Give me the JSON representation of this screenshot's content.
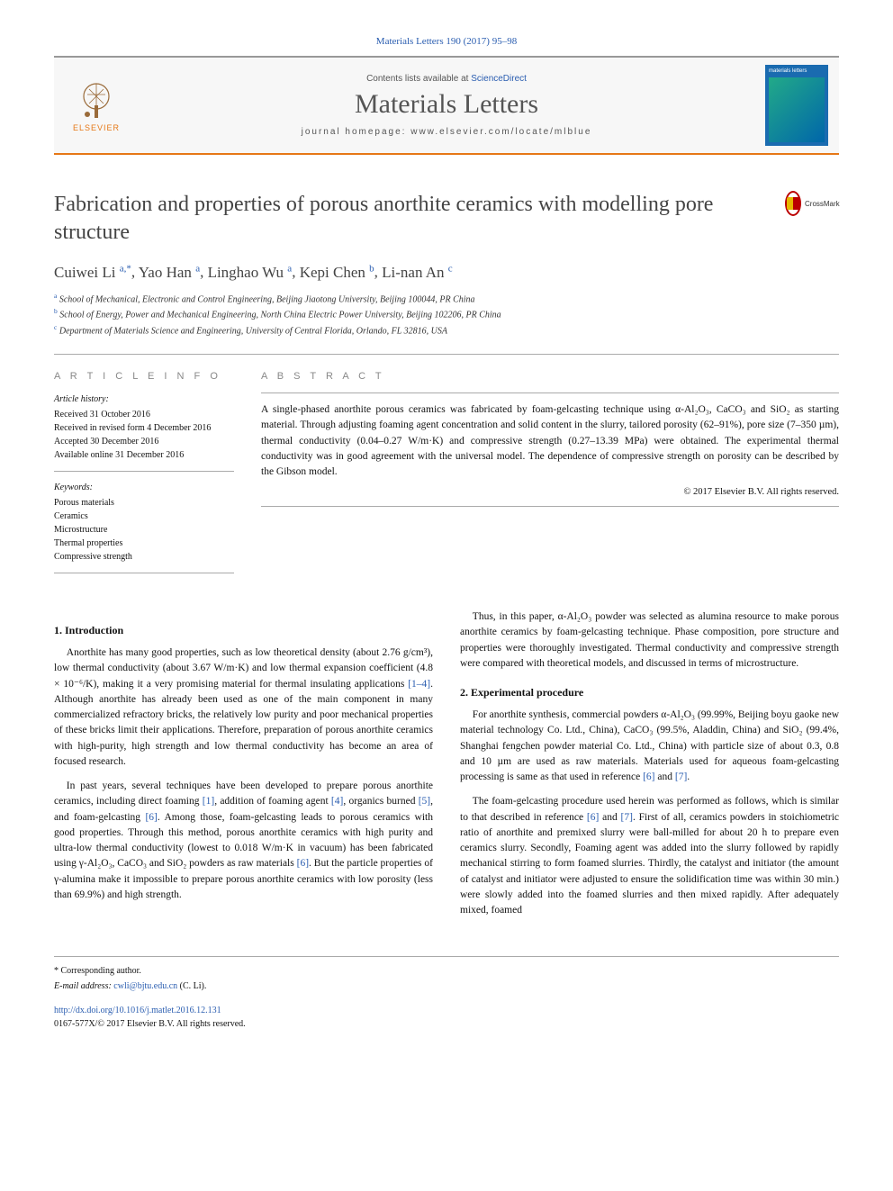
{
  "citation": "Materials Letters 190 (2017) 95–98",
  "header": {
    "contents_prefix": "Contents lists available at ",
    "contents_link": "ScienceDirect",
    "journal": "Materials Letters",
    "homepage_label": "journal homepage: ",
    "homepage_url": "www.elsevier.com/locate/mlblue",
    "publisher_word": "ELSEVIER",
    "cover_label": "materials letters"
  },
  "title": "Fabrication and properties of porous anorthite ceramics with modelling pore structure",
  "crossmark_label": "CrossMark",
  "authors_html": "Cuiwei Li|a,*|, Yao Han|a|, Linghao Wu|a|, Kepi Chen|b|, Li-nan An|c|",
  "authors": [
    {
      "name": "Cuiwei Li",
      "aff": "a",
      "corr": true
    },
    {
      "name": "Yao Han",
      "aff": "a",
      "corr": false
    },
    {
      "name": "Linghao Wu",
      "aff": "a",
      "corr": false
    },
    {
      "name": "Kepi Chen",
      "aff": "b",
      "corr": false
    },
    {
      "name": "Li-nan An",
      "aff": "c",
      "corr": false
    }
  ],
  "affiliations": [
    {
      "key": "a",
      "text": "School of Mechanical, Electronic and Control Engineering, Beijing Jiaotong University, Beijing 100044, PR China"
    },
    {
      "key": "b",
      "text": "School of Energy, Power and Mechanical Engineering, North China Electric Power University, Beijing 102206, PR China"
    },
    {
      "key": "c",
      "text": "Department of Materials Science and Engineering, University of Central Florida, Orlando, FL 32816, USA"
    }
  ],
  "article_info": {
    "heading": "A R T I C L E   I N F O",
    "history_label": "Article history:",
    "history": [
      "Received 31 October 2016",
      "Received in revised form 4 December 2016",
      "Accepted 30 December 2016",
      "Available online 31 December 2016"
    ],
    "keywords_label": "Keywords:",
    "keywords": [
      "Porous materials",
      "Ceramics",
      "Microstructure",
      "Thermal properties",
      "Compressive strength"
    ]
  },
  "abstract": {
    "heading": "A B S T R A C T",
    "text": "A single-phased anorthite porous ceramics was fabricated by foam-gelcasting technique using α-Al₂O₃, CaCO₃ and SiO₂ as starting material. Through adjusting foaming agent concentration and solid content in the slurry, tailored porosity (62–91%), pore size (7–350 µm), thermal conductivity (0.04–0.27 W/m·K) and compressive strength (0.27–13.39 MPa) were obtained. The experimental thermal conductivity was in good agreement with the universal model. The dependence of compressive strength on porosity can be described by the Gibson model.",
    "copyright": "© 2017 Elsevier B.V. All rights reserved."
  },
  "sections": {
    "intro_head": "1. Introduction",
    "intro_p1": "Anorthite has many good properties, such as low theoretical density (about 2.76 g/cm³), low thermal conductivity (about 3.67 W/m·K) and low thermal expansion coefficient (4.8 × 10⁻⁶/K), making it a very promising material for thermal insulating applications [1–4]. Although anorthite has already been used as one of the main component in many commercialized refractory bricks, the relatively low purity and poor mechanical properties of these bricks limit their applications. Therefore, preparation of porous anorthite ceramics with high-purity, high strength and low thermal conductivity has become an area of focused research.",
    "intro_p2": "In past years, several techniques have been developed to prepare porous anorthite ceramics, including direct foaming [1], addition of foaming agent [4], organics burned [5], and foam-gelcasting [6]. Among those, foam-gelcasting leads to porous ceramics with good properties. Through this method, porous anorthite ceramics with high purity and ultra-low thermal conductivity (lowest to 0.018 W/m·K in vacuum) has been fabricated using γ-Al₂O₃, CaCO₃ and SiO₂ powders as raw materials [6]. But the particle properties of γ-alumina make it impossible to prepare porous anorthite ceramics with low porosity (less than 69.9%) and high strength.",
    "intro_p3": "Thus, in this paper, α-Al₂O₃ powder was selected as alumina resource to make porous anorthite ceramics by foam-gelcasting technique. Phase composition, pore structure and properties were thoroughly investigated. Thermal conductivity and compressive strength were compared with theoretical models, and discussed in terms of microstructure.",
    "exp_head": "2. Experimental procedure",
    "exp_p1": "For anorthite synthesis, commercial powders α-Al₂O₃ (99.99%, Beijing boyu gaoke new material technology Co. Ltd., China), CaCO₃ (99.5%, Aladdin, China) and SiO₂ (99.4%, Shanghai fengchen powder material Co. Ltd., China) with particle size of about 0.3, 0.8 and 10 µm are used as raw materials. Materials used for aqueous foam-gelcasting processing is same as that used in reference [6] and [7].",
    "exp_p2": "The foam-gelcasting procedure used herein was performed as follows, which is similar to that described in reference [6] and [7]. First of all, ceramics powders in stoichiometric ratio of anorthite and premixed slurry were ball-milled for about 20 h to prepare even ceramics slurry. Secondly, Foaming agent was added into the slurry followed by rapidly mechanical stirring to form foamed slurries. Thirdly, the catalyst and initiator (the amount of catalyst and initiator were adjusted to ensure the solidification time was within 30 min.) were slowly added into the foamed slurries and then mixed rapidly. After adequately mixed, foamed"
  },
  "footnotes": {
    "corr_label": "* Corresponding author.",
    "email_label": "E-mail address: ",
    "email": "cwli@bjtu.edu.cn",
    "email_suffix": " (C. Li).",
    "doi_label": "http://dx.doi.org/10.1016/j.matlet.2016.12.131",
    "issn": "0167-577X/© 2017 Elsevier B.V. All rights reserved."
  },
  "colors": {
    "link": "#2a5db0",
    "accent": "#e67817",
    "text": "#111111",
    "muted": "#888888"
  }
}
